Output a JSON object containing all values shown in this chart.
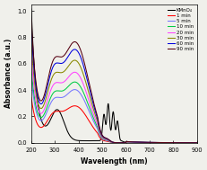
{
  "title": "",
  "xlabel": "Wavelength (nm)",
  "ylabel": "Absorbance (a.u.)",
  "xlim": [
    200,
    900
  ],
  "ylim": [
    0.0,
    1.05
  ],
  "yticks": [
    0.0,
    0.2,
    0.4,
    0.6,
    0.8,
    1.0
  ],
  "xticks": [
    200,
    300,
    400,
    500,
    600,
    700,
    800,
    900
  ],
  "legend_entries": [
    "KMnO₄",
    "1 min",
    "5 min",
    "10 min",
    "20 min",
    "30 min",
    "60 min",
    "90 min"
  ],
  "line_colors": [
    "#000000",
    "#ff0000",
    "#7777ff",
    "#00cc44",
    "#ff44ff",
    "#888800",
    "#0000dd",
    "#550011"
  ],
  "background_color": "#f0f0eb",
  "time_scales": [
    0.34,
    0.49,
    0.56,
    0.65,
    0.76,
    0.86,
    0.93
  ]
}
